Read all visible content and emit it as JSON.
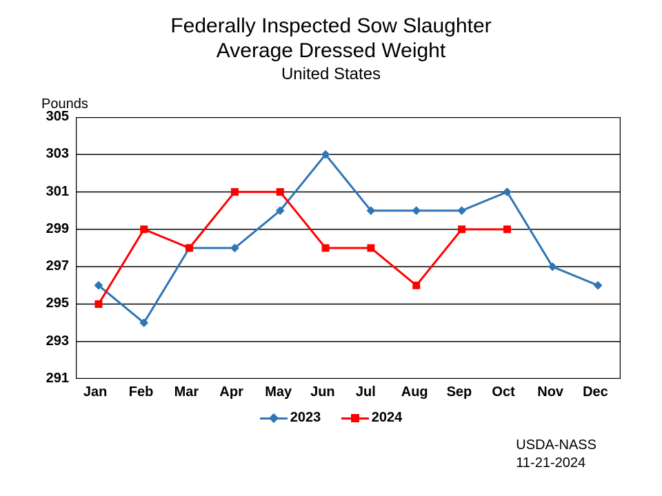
{
  "chart": {
    "type": "line",
    "title_line1": "Federally Inspected Sow Slaughter",
    "title_line2": "Average Dressed Weight",
    "subtitle": "United States",
    "y_unit_label": "Pounds",
    "title_fontsize": 30,
    "subtitle_fontsize": 24,
    "label_fontsize": 20,
    "background_color": "#ffffff",
    "plot_border_color": "#000000",
    "grid_color": "#000000",
    "categories": [
      "Jan",
      "Feb",
      "Mar",
      "Apr",
      "May",
      "Jun",
      "Jul",
      "Aug",
      "Sep",
      "Oct",
      "Nov",
      "Dec"
    ],
    "ylim": [
      291,
      305
    ],
    "ytick_step": 2,
    "yticks": [
      291,
      293,
      295,
      297,
      299,
      301,
      303,
      305
    ],
    "series": [
      {
        "name": "2023",
        "color": "#2e75b6",
        "marker": "diamond",
        "marker_size": 9,
        "line_width": 3,
        "values": [
          296,
          294,
          298,
          298,
          300,
          303,
          300,
          300,
          300,
          301,
          297,
          296
        ]
      },
      {
        "name": "2024",
        "color": "#ff0000",
        "marker": "square",
        "marker_size": 11,
        "line_width": 3,
        "values": [
          295,
          299,
          298,
          301,
          301,
          298,
          298,
          296,
          299,
          299,
          null,
          null
        ]
      }
    ],
    "legend_position": "bottom",
    "source_line1": "USDA-NASS",
    "source_line2": "11-21-2024"
  }
}
